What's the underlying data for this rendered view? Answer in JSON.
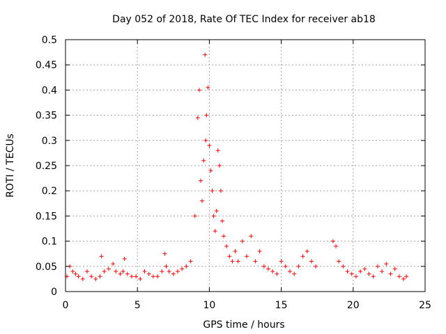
{
  "chart_data": {
    "type": "scatter",
    "title": "Day 052 of 2018, Rate Of TEC Index for receiver ab18",
    "xlabel": "GPS time / hours",
    "ylabel": "ROTI / TECUs",
    "xlim": [
      0,
      25
    ],
    "ylim": [
      0,
      0.5
    ],
    "xticks": [
      "0",
      "5",
      "10",
      "15",
      "20",
      "25"
    ],
    "yticks": [
      "0",
      "0.05",
      "0.1",
      "0.15",
      "0.2",
      "0.25",
      "0.3",
      "0.35",
      "0.4",
      "0.45",
      "0.5"
    ],
    "grid": true,
    "marker": "+",
    "color": "#ff0000",
    "series": [
      {
        "x": [
          0.1,
          0.3,
          0.5,
          0.7,
          0.9,
          1.2,
          1.5,
          1.8,
          2.1,
          2.4,
          2.5,
          2.7,
          3.0,
          3.3,
          3.5,
          3.8,
          4.0,
          4.1,
          4.3,
          4.6,
          4.9,
          5.2,
          5.5,
          5.8,
          6.1,
          6.4,
          6.7,
          6.9,
          7.0,
          7.2,
          7.5,
          7.8,
          8.1,
          8.4,
          8.7,
          9.0,
          9.2,
          9.3,
          9.4,
          9.5,
          9.6,
          9.7,
          9.75,
          9.8,
          9.9,
          10.0,
          10.1,
          10.2,
          10.3,
          10.4,
          10.5,
          10.6,
          10.7,
          10.8,
          10.9,
          11.0,
          11.2,
          11.4,
          11.6,
          11.8,
          12.0,
          12.3,
          12.6,
          12.9,
          13.2,
          13.5,
          13.8,
          14.1,
          14.4,
          14.7,
          15.0,
          15.3,
          15.6,
          15.9,
          16.2,
          16.5,
          16.8,
          17.1,
          17.4,
          18.6,
          18.8,
          19.0,
          19.3,
          19.6,
          19.9,
          20.2,
          20.5,
          20.8,
          21.1,
          21.4,
          21.7,
          22.0,
          22.3,
          22.6,
          22.9,
          23.2,
          23.5,
          23.7
        ],
        "y": [
          0.03,
          0.05,
          0.04,
          0.035,
          0.03,
          0.025,
          0.04,
          0.03,
          0.025,
          0.03,
          0.07,
          0.04,
          0.045,
          0.055,
          0.04,
          0.035,
          0.04,
          0.065,
          0.035,
          0.03,
          0.03,
          0.025,
          0.04,
          0.035,
          0.03,
          0.03,
          0.04,
          0.075,
          0.05,
          0.04,
          0.035,
          0.04,
          0.045,
          0.05,
          0.06,
          0.15,
          0.345,
          0.4,
          0.22,
          0.18,
          0.26,
          0.47,
          0.3,
          0.35,
          0.405,
          0.29,
          0.24,
          0.2,
          0.15,
          0.12,
          0.16,
          0.28,
          0.25,
          0.2,
          0.14,
          0.11,
          0.09,
          0.07,
          0.06,
          0.08,
          0.06,
          0.1,
          0.07,
          0.11,
          0.06,
          0.08,
          0.05,
          0.045,
          0.04,
          0.035,
          0.06,
          0.05,
          0.04,
          0.035,
          0.05,
          0.07,
          0.08,
          0.06,
          0.05,
          0.1,
          0.09,
          0.06,
          0.05,
          0.04,
          0.035,
          0.03,
          0.04,
          0.045,
          0.035,
          0.03,
          0.05,
          0.04,
          0.055,
          0.035,
          0.045,
          0.03,
          0.025,
          0.03
        ]
      }
    ]
  }
}
